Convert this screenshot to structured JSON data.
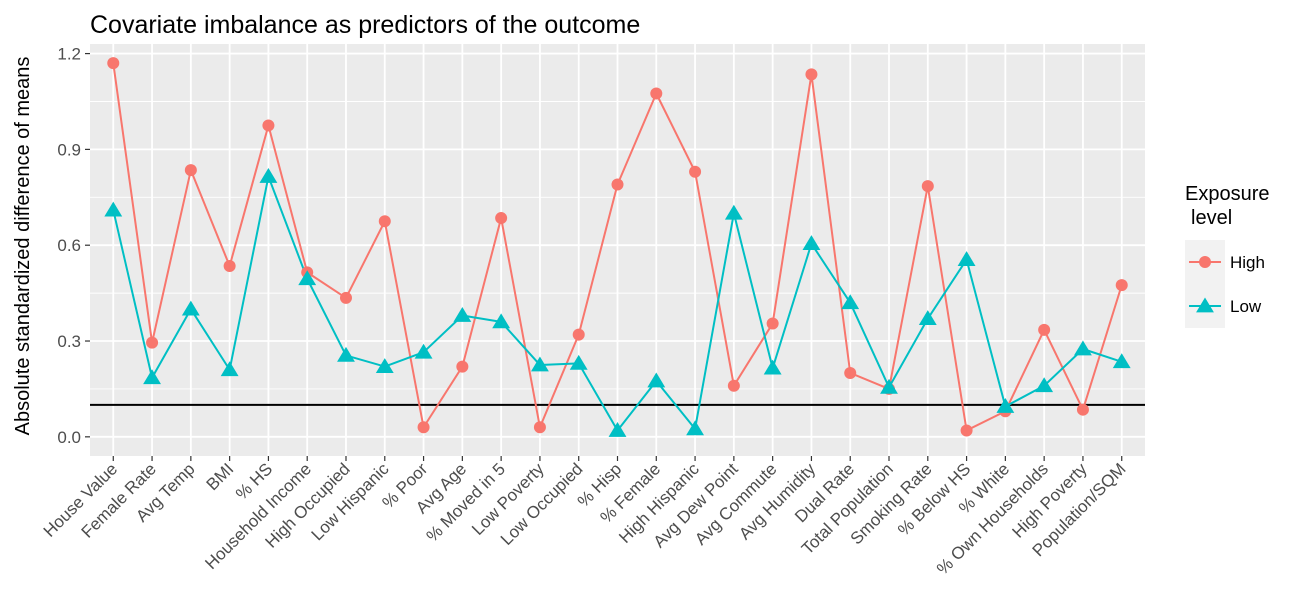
{
  "chart_data": {
    "type": "line",
    "title": "Covariate imbalance as predictors of the outcome",
    "xlabel": "",
    "ylabel": "Absolute standardized difference of means",
    "ylim": [
      -0.06,
      1.23
    ],
    "yticks": [
      0.0,
      0.3,
      0.6,
      0.9,
      1.2
    ],
    "ytick_labels": [
      "0.0",
      "0.3",
      "0.6",
      "0.9",
      "1.2"
    ],
    "grid": true,
    "reference_line": 0.1,
    "categories": [
      "House Value",
      "Female Rate",
      "Avg Temp",
      "BMI",
      "% HS",
      "Household Income",
      "High Occupied",
      "Low Hispanic",
      "% Poor",
      "Avg Age",
      "% Moved in 5",
      "Low Poverty",
      "Low Occupied",
      "% Hisp",
      "% Female",
      "High Hispanic",
      "Avg Dew Point",
      "Avg Commute",
      "Avg Humidity",
      "Dual Rate",
      "Total Population",
      "Smoking Rate",
      "% Below HS",
      "% White",
      "% Own Households",
      "High Poverty",
      "Population/SQM"
    ],
    "series": [
      {
        "name": "High",
        "marker": "circle",
        "color": "#F8766D",
        "values": [
          1.17,
          0.295,
          0.835,
          0.535,
          0.975,
          0.515,
          0.435,
          0.675,
          0.03,
          0.22,
          0.685,
          0.03,
          0.32,
          0.79,
          1.075,
          0.83,
          0.16,
          0.355,
          1.135,
          0.2,
          0.15,
          0.785,
          0.02,
          0.08,
          0.335,
          0.085,
          0.475
        ]
      },
      {
        "name": "Low",
        "marker": "triangle",
        "color": "#00BFC4",
        "values": [
          0.71,
          0.185,
          0.4,
          0.21,
          0.815,
          0.495,
          0.255,
          0.22,
          0.265,
          0.38,
          0.36,
          0.225,
          0.23,
          0.02,
          0.175,
          0.025,
          0.7,
          0.215,
          0.605,
          0.42,
          0.155,
          0.37,
          0.555,
          0.095,
          0.16,
          0.275,
          0.235
        ]
      }
    ],
    "legend": {
      "title_line1": "Exposure",
      "title_line2": "level",
      "position": "right"
    }
  }
}
